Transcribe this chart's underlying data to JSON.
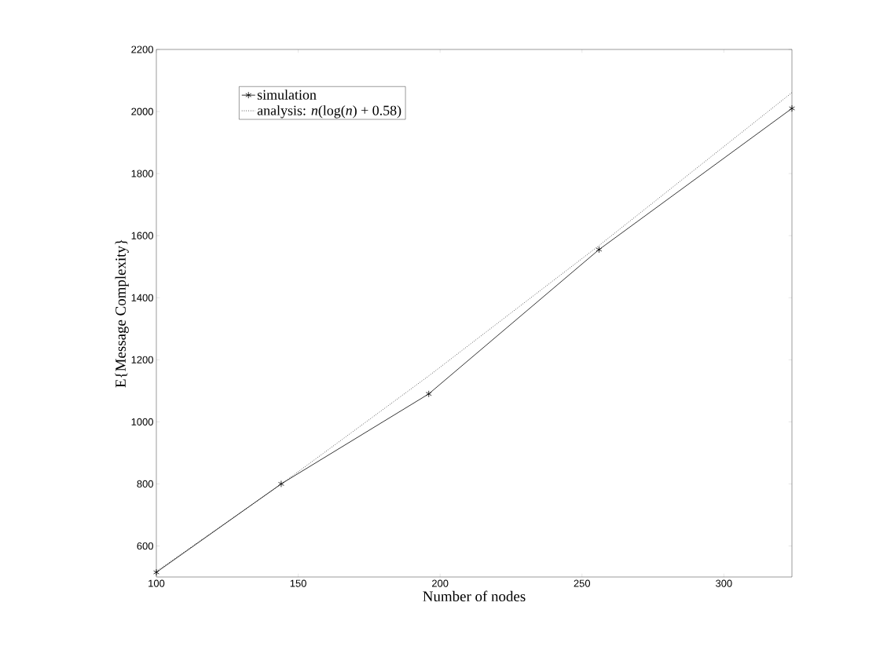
{
  "chart_data": {
    "type": "line",
    "xlabel": "Number of nodes",
    "ylabel": "E{Message Complexity}",
    "x": [
      100,
      144,
      196,
      256,
      324
    ],
    "series": [
      {
        "name": "simulation",
        "color": "#000000",
        "values": [
          515,
          800,
          1090,
          1555,
          2010
        ],
        "marker": "cross",
        "line_style": "solid"
      },
      {
        "name": "analysis: *n*(log(*n*) + 0.58)",
        "color": "#000000",
        "values": [
          518,
          799,
          1148,
          1568,
          2061
        ],
        "marker": "none",
        "line_style": "dotted"
      }
    ],
    "xlim": [
      100,
      324
    ],
    "ylim": [
      500,
      2200
    ],
    "xticks": [
      100,
      150,
      200,
      250,
      300
    ],
    "yticks": [
      600,
      800,
      1000,
      1200,
      1400,
      1600,
      1800,
      2000,
      2200
    ],
    "legend": "top left"
  }
}
